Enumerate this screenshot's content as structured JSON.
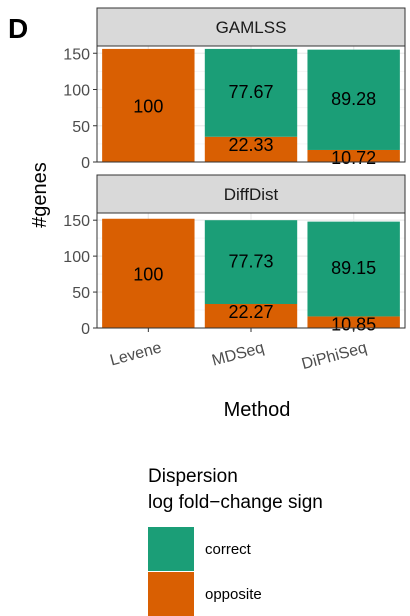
{
  "panel_letter": "D",
  "colors": {
    "correct": "#1b9e77",
    "opposite": "#d95f02",
    "strip_bg": "#d9d9d9",
    "grid_major": "#ebebeb",
    "grid_minor": "#f5f5f5",
    "panel_border": "#333333"
  },
  "chart_data": {
    "type": "bar",
    "stacked": true,
    "categories": [
      "Levene",
      "MDSeq",
      "DiPhiSeq"
    ],
    "xlabel": "Method",
    "ylabel": "#genes",
    "ylim": [
      0,
      160
    ],
    "yticks": [
      0,
      50,
      100,
      150
    ],
    "grid": true,
    "panels": [
      {
        "strip": "GAMLSS",
        "totals": [
          156,
          156,
          155
        ],
        "series": [
          {
            "name": "opposite",
            "values": [
              156,
              34.8,
              16.6
            ],
            "labels": [
              "100",
              "22.33",
              "10.72"
            ]
          },
          {
            "name": "correct",
            "values": [
              0,
              121.2,
              138.4
            ],
            "labels": [
              "",
              "77.67",
              "89.28"
            ]
          }
        ]
      },
      {
        "strip": "DiffDist",
        "totals": [
          152,
          150,
          148
        ],
        "series": [
          {
            "name": "opposite",
            "values": [
              152,
              33.4,
              16.1
            ],
            "labels": [
              "100",
              "22.27",
              "10.85"
            ]
          },
          {
            "name": "correct",
            "values": [
              0,
              116.6,
              131.9
            ],
            "labels": [
              "",
              "77.73",
              "89.15"
            ]
          }
        ]
      }
    ],
    "legend": {
      "title_lines": [
        "Dispersion",
        "log fold−change sign"
      ],
      "entries": [
        "correct",
        "opposite"
      ],
      "placement": "bottom"
    }
  }
}
